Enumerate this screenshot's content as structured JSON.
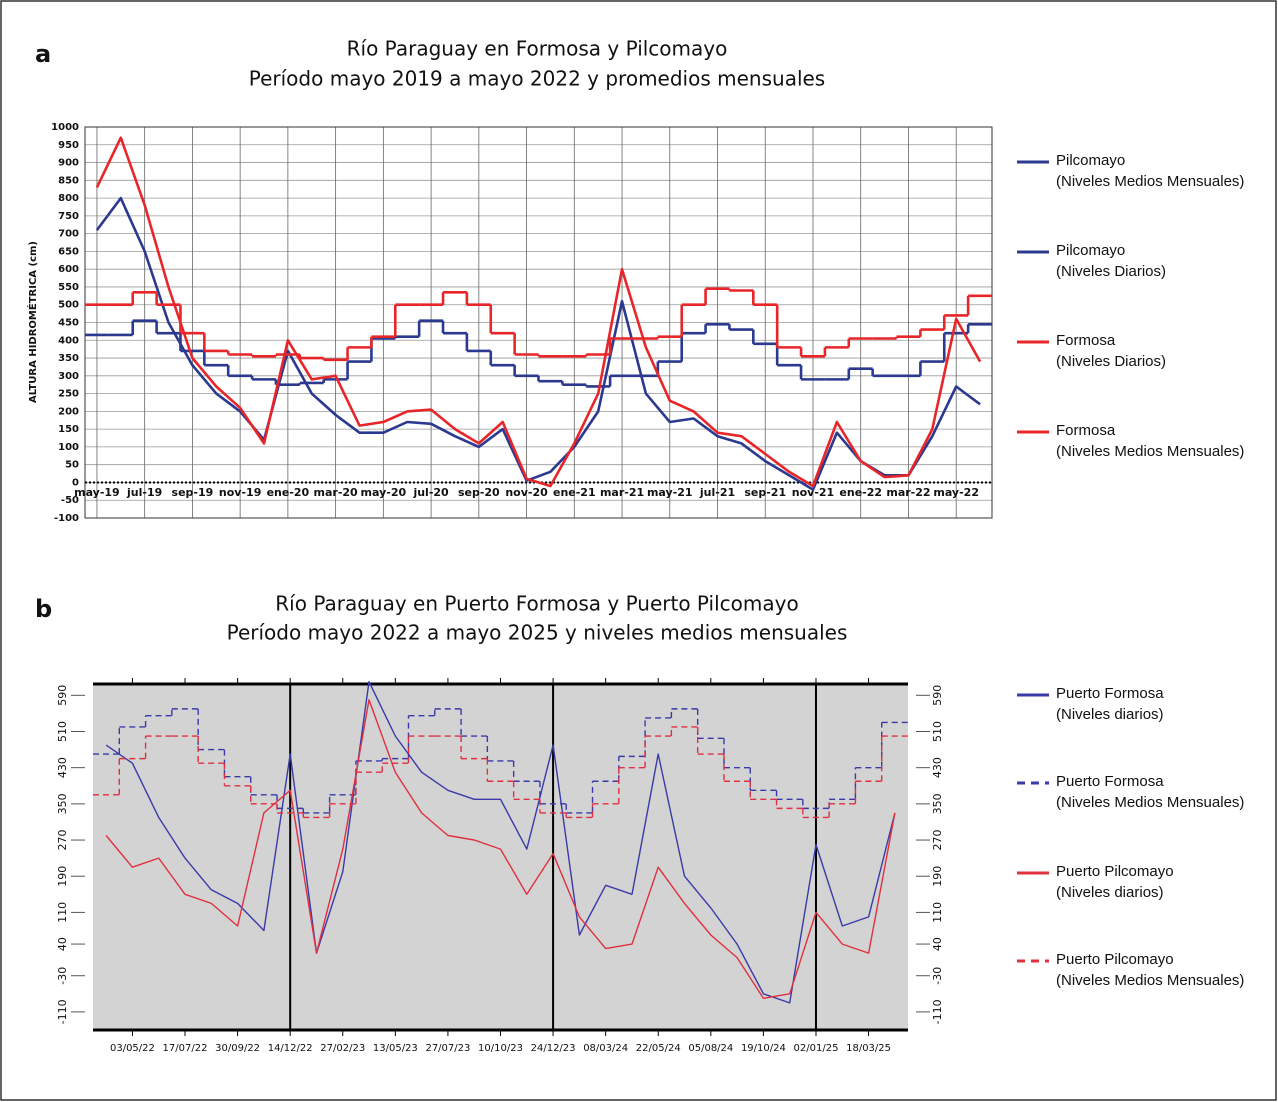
{
  "chart_data": [
    {
      "type": "line",
      "label": "a",
      "title": "Río Paraguay en Formosa y Pilcomayo",
      "subtitle": "Período mayo 2019 a mayo 2022 y promedios mensuales",
      "y_label": "ALTURA HIDROMÉTRICA (cm)",
      "categories": [
        "may-19",
        null,
        "jul-19",
        null,
        "sep-19",
        null,
        "nov-19",
        null,
        "ene-20",
        null,
        "mar-20",
        null,
        "may-20",
        null,
        "jul-20",
        null,
        "sep-20",
        null,
        "nov-20",
        null,
        "ene-21",
        null,
        "mar-21",
        null,
        "may-21",
        null,
        "jul-21",
        null,
        "sep-21",
        null,
        "nov-21",
        null,
        "ene-22",
        null,
        "mar-22",
        null,
        "may-22",
        null
      ],
      "ylim": [
        -100,
        1000
      ],
      "yticks": [
        -100,
        -50,
        0,
        50,
        100,
        150,
        200,
        250,
        300,
        350,
        400,
        450,
        500,
        550,
        600,
        650,
        700,
        750,
        800,
        850,
        900,
        950,
        1000
      ],
      "grid": true,
      "series": [
        {
          "name": "Pilcomayo\n(Niveles Medios Mensuales)",
          "color": "#2b3990",
          "style": "steps",
          "values": [
            415,
            415,
            455,
            420,
            370,
            330,
            300,
            290,
            275,
            280,
            290,
            340,
            405,
            410,
            455,
            420,
            370,
            330,
            300,
            285,
            275,
            270,
            300,
            300,
            340,
            420,
            445,
            430,
            390,
            330,
            290,
            290,
            320,
            300,
            300,
            340,
            420,
            445
          ]
        },
        {
          "name": "Pilcomayo\n(Niveles Diarios)",
          "color": "#2b3990",
          "style": "line",
          "values": [
            710,
            800,
            650,
            450,
            330,
            250,
            200,
            120,
            370,
            250,
            190,
            140,
            140,
            170,
            165,
            130,
            100,
            150,
            5,
            30,
            100,
            200,
            510,
            250,
            170,
            180,
            130,
            110,
            60,
            20,
            -20,
            140,
            60,
            20,
            20,
            130,
            270,
            220
          ]
        },
        {
          "name": "Formosa\n(Niveles Diarios)",
          "color": "#e8262a",
          "style": "line",
          "values": [
            830,
            970,
            780,
            550,
            350,
            270,
            210,
            110,
            400,
            290,
            300,
            160,
            170,
            200,
            205,
            150,
            110,
            170,
            10,
            -10,
            110,
            250,
            600,
            380,
            230,
            200,
            140,
            130,
            80,
            30,
            -10,
            170,
            60,
            15,
            20,
            150,
            460,
            340
          ]
        },
        {
          "name": "Formosa\n(Niveles Medios Mensuales)",
          "color": "#e8262a",
          "style": "steps",
          "values": [
            500,
            500,
            535,
            500,
            420,
            370,
            360,
            355,
            360,
            350,
            345,
            380,
            410,
            500,
            500,
            535,
            500,
            420,
            360,
            355,
            355,
            360,
            405,
            405,
            410,
            500,
            545,
            540,
            500,
            380,
            355,
            380,
            405,
            405,
            410,
            430,
            470,
            525
          ]
        }
      ]
    },
    {
      "type": "line",
      "label": "b",
      "title": "Río Paraguay en Puerto Formosa y Puerto Pilcomayo",
      "subtitle": "Período mayo 2022 a mayo 2025 y niveles medios mensuales",
      "categories": [
        null,
        "03/05/22",
        null,
        "17/07/22",
        null,
        "30/09/22",
        null,
        "14/12/22",
        null,
        "27/02/23",
        null,
        "13/05/23",
        null,
        "27/07/23",
        null,
        "10/10/23",
        null,
        "24/12/23",
        null,
        "08/03/24",
        null,
        "22/05/24",
        null,
        "05/08/24",
        null,
        "19/10/24",
        null,
        "02/01/25",
        null,
        "18/03/25",
        null
      ],
      "ylim": [
        -150,
        615
      ],
      "yticks": [
        -110,
        -30,
        40,
        110,
        190,
        270,
        350,
        430,
        510,
        590
      ],
      "series": [
        {
          "name": "Puerto Formosa\n(Niveles diarios)",
          "color": "#3a3aa8",
          "style": "line",
          "dash": false,
          "values": [
            480,
            440,
            320,
            230,
            160,
            130,
            70,
            460,
            20,
            200,
            620,
            500,
            420,
            380,
            360,
            360,
            250,
            480,
            60,
            170,
            150,
            460,
            190,
            120,
            40,
            -70,
            -90,
            260,
            80,
            100,
            330
          ]
        },
        {
          "name": "Puerto Formosa\n(Niveles Medios Mensuales)",
          "color": "#3a3aa8",
          "style": "steps",
          "dash": true,
          "values": [
            460,
            520,
            545,
            560,
            470,
            410,
            370,
            340,
            330,
            370,
            445,
            450,
            545,
            560,
            500,
            445,
            400,
            350,
            330,
            400,
            455,
            540,
            560,
            495,
            430,
            380,
            360,
            340,
            360,
            430,
            530
          ]
        },
        {
          "name": "Puerto Pilcomayo\n(Niveles diarios)",
          "color": "#e03040",
          "style": "line",
          "dash": false,
          "values": [
            280,
            210,
            230,
            150,
            130,
            80,
            330,
            380,
            20,
            250,
            580,
            420,
            330,
            280,
            270,
            250,
            150,
            240,
            100,
            30,
            40,
            210,
            130,
            60,
            10,
            -80,
            -70,
            110,
            40,
            20,
            330
          ]
        },
        {
          "name": "Puerto Pilcomayo\n(Niveles Medios Mensuales)",
          "color": "#e03040",
          "style": "steps",
          "dash": true,
          "values": [
            370,
            450,
            500,
            500,
            440,
            390,
            350,
            330,
            320,
            350,
            420,
            440,
            500,
            500,
            450,
            400,
            360,
            330,
            320,
            350,
            430,
            500,
            520,
            460,
            400,
            360,
            340,
            320,
            350,
            400,
            500
          ]
        }
      ]
    }
  ]
}
